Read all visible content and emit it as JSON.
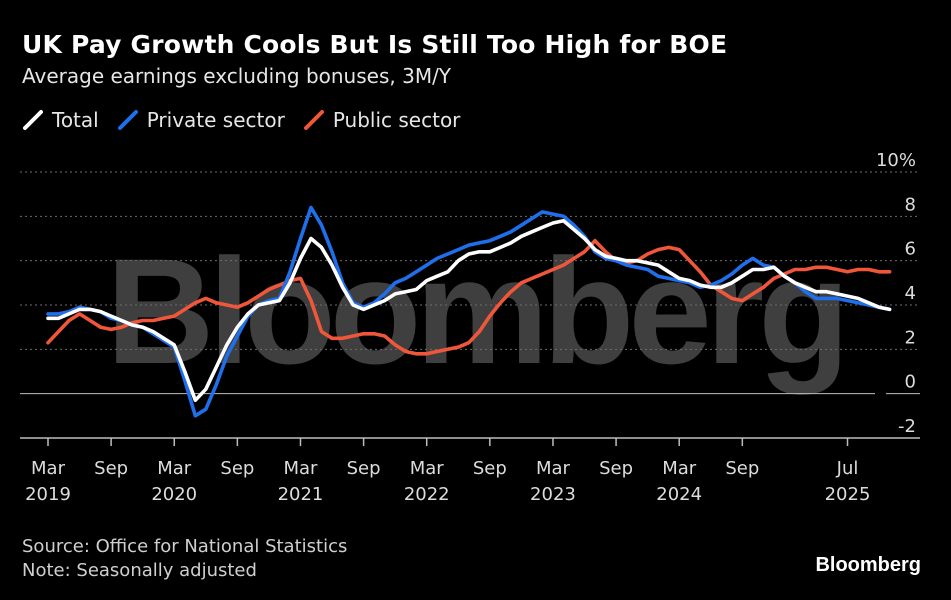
{
  "title": "UK Pay Growth Cools But Is Still Too High for BOE",
  "subtitle": "Average earnings excluding bonuses, 3M/Y",
  "source": "Source: Office for National Statistics",
  "note": "Note: Seasonally adjusted",
  "brand": "Bloomberg",
  "watermark": "Bloomberg",
  "colors": {
    "background": "#000000",
    "total": "#ffffff",
    "private": "#1f6feb",
    "public": "#f0573a",
    "grid": "#6e6e6e",
    "axis_text": "#dcdcdc",
    "watermark": "#4a4a4a"
  },
  "chart_data": {
    "type": "line",
    "title": "UK Pay Growth Cools But Is Still Too High for BOE",
    "subtitle": "Average earnings excluding bonuses, 3M/Y",
    "ylim": [
      -2,
      10
    ],
    "yticks": [
      {
        "value": 10,
        "label": "10%"
      },
      {
        "value": 8,
        "label": "8"
      },
      {
        "value": 6,
        "label": "6"
      },
      {
        "value": 4,
        "label": "4"
      },
      {
        "value": 2,
        "label": "2"
      },
      {
        "value": 0,
        "label": "0"
      },
      {
        "value": -2,
        "label": "-2"
      }
    ],
    "xticks": [
      {
        "month": 0,
        "line1": "Mar",
        "line2": "2019"
      },
      {
        "month": 6,
        "line1": "Sep",
        "line2": ""
      },
      {
        "month": 12,
        "line1": "Mar",
        "line2": "2020"
      },
      {
        "month": 18,
        "line1": "Sep",
        "line2": ""
      },
      {
        "month": 24,
        "line1": "Mar",
        "line2": "2021"
      },
      {
        "month": 30,
        "line1": "Sep",
        "line2": ""
      },
      {
        "month": 36,
        "line1": "Mar",
        "line2": "2022"
      },
      {
        "month": 42,
        "line1": "Sep",
        "line2": ""
      },
      {
        "month": 48,
        "line1": "Mar",
        "line2": "2023"
      },
      {
        "month": 54,
        "line1": "Sep",
        "line2": ""
      },
      {
        "month": 60,
        "line1": "Mar",
        "line2": "2024"
      },
      {
        "month": 66,
        "line1": "Sep",
        "line2": ""
      },
      {
        "month": 76,
        "line1": "Jul",
        "line2": "2025"
      }
    ],
    "x_start": "Mar 2019",
    "x_unit": "months since Mar 2019",
    "series": [
      {
        "name": "Total",
        "color": "#ffffff",
        "values": [
          3.4,
          3.4,
          3.6,
          3.8,
          3.8,
          3.7,
          3.5,
          3.3,
          3.1,
          3.0,
          2.8,
          2.5,
          2.2,
          1.0,
          -0.3,
          0.2,
          1.2,
          2.2,
          3.0,
          3.6,
          4.0,
          4.1,
          4.2,
          5.0,
          6.1,
          7.0,
          6.6,
          5.8,
          4.8,
          4.0,
          3.8,
          4.0,
          4.2,
          4.5,
          4.6,
          4.7,
          5.1,
          5.3,
          5.5,
          6.0,
          6.3,
          6.4,
          6.4,
          6.6,
          6.8,
          7.1,
          7.3,
          7.5,
          7.7,
          7.8,
          7.4,
          7.0,
          6.5,
          6.2,
          6.1,
          6.0,
          6.0,
          5.9,
          5.8,
          5.5,
          5.2,
          5.1,
          4.9,
          4.8,
          4.8,
          5.0,
          5.3,
          5.6,
          5.6,
          5.7,
          5.3,
          5.0,
          4.8,
          4.6,
          4.6,
          4.5,
          4.4,
          4.3,
          4.1,
          3.9,
          3.8
        ]
      },
      {
        "name": "Private sector",
        "color": "#1f6feb",
        "values": [
          3.6,
          3.6,
          3.7,
          3.9,
          3.8,
          3.7,
          3.4,
          3.3,
          3.1,
          3.0,
          2.7,
          2.4,
          2.1,
          0.6,
          -1.0,
          -0.7,
          0.4,
          1.7,
          2.6,
          3.5,
          4.0,
          4.2,
          4.3,
          5.5,
          7.0,
          8.4,
          7.6,
          6.4,
          5.0,
          4.1,
          3.9,
          4.1,
          4.5,
          5.0,
          5.2,
          5.5,
          5.8,
          6.1,
          6.3,
          6.5,
          6.7,
          6.8,
          6.9,
          7.1,
          7.3,
          7.6,
          7.9,
          8.2,
          8.1,
          8.0,
          7.6,
          7.1,
          6.4,
          6.1,
          6.0,
          5.8,
          5.7,
          5.6,
          5.3,
          5.2,
          5.1,
          5.0,
          4.8,
          4.9,
          5.1,
          5.4,
          5.8,
          6.1,
          5.8,
          5.7,
          5.3,
          5.0,
          4.6,
          4.3,
          4.3,
          4.3,
          4.2,
          4.1,
          4.0,
          3.9,
          3.8
        ]
      },
      {
        "name": "Public sector",
        "color": "#f0573a",
        "values": [
          2.3,
          2.8,
          3.3,
          3.6,
          3.3,
          3.0,
          2.9,
          3.0,
          3.2,
          3.3,
          3.3,
          3.4,
          3.5,
          3.8,
          4.1,
          4.3,
          4.1,
          4.0,
          3.9,
          4.1,
          4.4,
          4.7,
          4.9,
          5.1,
          5.2,
          4.2,
          2.8,
          2.5,
          2.5,
          2.6,
          2.7,
          2.7,
          2.6,
          2.2,
          1.9,
          1.8,
          1.8,
          1.9,
          2.0,
          2.1,
          2.3,
          2.8,
          3.5,
          4.1,
          4.6,
          5.0,
          5.2,
          5.4,
          5.6,
          5.8,
          6.1,
          6.4,
          6.9,
          6.4,
          6.0,
          5.9,
          6.0,
          6.3,
          6.5,
          6.6,
          6.5,
          6.0,
          5.5,
          4.9,
          4.6,
          4.3,
          4.2,
          4.5,
          4.8,
          5.2,
          5.4,
          5.6,
          5.6,
          5.7,
          5.7,
          5.6,
          5.5,
          5.6,
          5.6,
          5.5,
          5.5
        ]
      }
    ]
  }
}
